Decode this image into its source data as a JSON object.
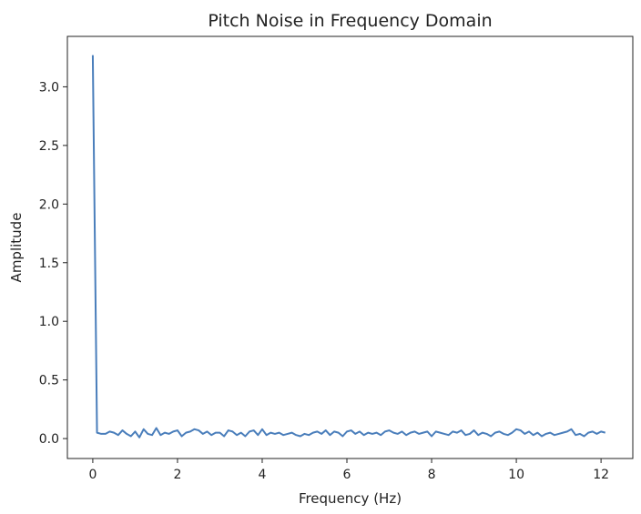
{
  "chart_data": {
    "type": "line",
    "title": "Pitch Noise in Frequency Domain",
    "xlabel": "Frequency (Hz)",
    "ylabel": "Amplitude",
    "xlim": [
      -0.6,
      12.75
    ],
    "ylim": [
      -0.17,
      3.43
    ],
    "xticks": [
      0,
      2,
      4,
      6,
      8,
      10,
      12
    ],
    "xtick_labels": [
      "0",
      "2",
      "4",
      "6",
      "8",
      "10",
      "12"
    ],
    "yticks": [
      0.0,
      0.5,
      1.0,
      1.5,
      2.0,
      2.5,
      3.0
    ],
    "ytick_labels": [
      "0.0",
      "0.5",
      "1.0",
      "1.5",
      "2.0",
      "2.5",
      "3.0"
    ],
    "grid": false,
    "line_color": "#4a7ebb",
    "series": [
      {
        "x": [
          0.0,
          0.1,
          0.2,
          0.3,
          0.4,
          0.5,
          0.6,
          0.7,
          0.8,
          0.9,
          1.0,
          1.1,
          1.2,
          1.3,
          1.4,
          1.5,
          1.6,
          1.7,
          1.8,
          1.9,
          2.0,
          2.1,
          2.2,
          2.3,
          2.4,
          2.5,
          2.6,
          2.7,
          2.8,
          2.9,
          3.0,
          3.1,
          3.2,
          3.3,
          3.4,
          3.5,
          3.6,
          3.7,
          3.8,
          3.9,
          4.0,
          4.1,
          4.2,
          4.3,
          4.4,
          4.5,
          4.6,
          4.7,
          4.8,
          4.9,
          5.0,
          5.1,
          5.2,
          5.3,
          5.4,
          5.5,
          5.6,
          5.7,
          5.8,
          5.9,
          6.0,
          6.1,
          6.2,
          6.3,
          6.4,
          6.5,
          6.6,
          6.7,
          6.8,
          6.9,
          7.0,
          7.1,
          7.2,
          7.3,
          7.4,
          7.5,
          7.6,
          7.7,
          7.8,
          7.9,
          8.0,
          8.1,
          8.2,
          8.3,
          8.4,
          8.5,
          8.6,
          8.7,
          8.8,
          8.9,
          9.0,
          9.1,
          9.2,
          9.3,
          9.4,
          9.5,
          9.6,
          9.7,
          9.8,
          9.9,
          10.0,
          10.1,
          10.2,
          10.3,
          10.4,
          10.5,
          10.6,
          10.7,
          10.8,
          10.9,
          11.0,
          11.1,
          11.2,
          11.3,
          11.4,
          11.5,
          11.6,
          11.7,
          11.8,
          11.9,
          12.0,
          12.1
        ],
        "values": [
          3.27,
          0.05,
          0.04,
          0.04,
          0.06,
          0.05,
          0.03,
          0.07,
          0.04,
          0.02,
          0.06,
          0.01,
          0.08,
          0.04,
          0.03,
          0.09,
          0.03,
          0.05,
          0.04,
          0.06,
          0.07,
          0.02,
          0.05,
          0.06,
          0.08,
          0.07,
          0.04,
          0.06,
          0.03,
          0.05,
          0.05,
          0.02,
          0.07,
          0.06,
          0.03,
          0.05,
          0.02,
          0.06,
          0.07,
          0.03,
          0.08,
          0.03,
          0.05,
          0.04,
          0.05,
          0.03,
          0.04,
          0.05,
          0.03,
          0.02,
          0.04,
          0.03,
          0.05,
          0.06,
          0.04,
          0.07,
          0.03,
          0.06,
          0.05,
          0.02,
          0.06,
          0.07,
          0.04,
          0.06,
          0.03,
          0.05,
          0.04,
          0.05,
          0.03,
          0.06,
          0.07,
          0.05,
          0.04,
          0.06,
          0.03,
          0.05,
          0.06,
          0.04,
          0.05,
          0.06,
          0.02,
          0.06,
          0.05,
          0.04,
          0.03,
          0.06,
          0.05,
          0.07,
          0.03,
          0.04,
          0.07,
          0.03,
          0.05,
          0.04,
          0.02,
          0.05,
          0.06,
          0.04,
          0.03,
          0.05,
          0.08,
          0.07,
          0.04,
          0.06,
          0.03,
          0.05,
          0.02,
          0.04,
          0.05,
          0.03,
          0.04,
          0.05,
          0.06,
          0.08,
          0.03,
          0.04,
          0.02,
          0.05,
          0.06,
          0.04,
          0.06,
          0.05
        ]
      }
    ]
  }
}
